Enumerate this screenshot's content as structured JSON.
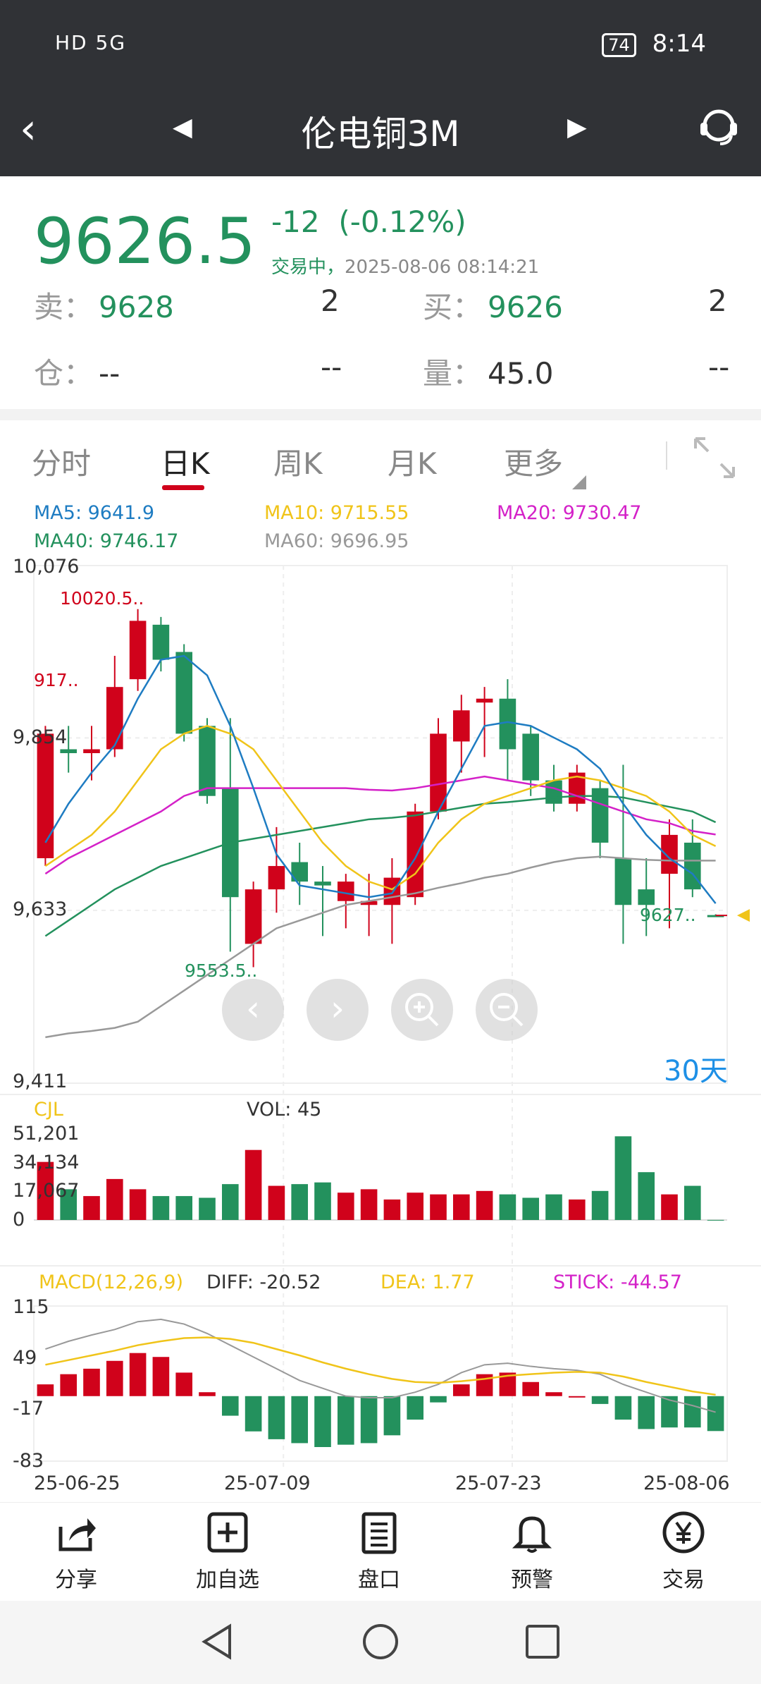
{
  "status_bar": {
    "left": "HD 5G",
    "battery": "74",
    "time": "8:14"
  },
  "nav": {
    "title": "伦电铜3M"
  },
  "quote": {
    "price": "9626.5",
    "change": "-12",
    "change_pct": "(-0.12%)",
    "status": "交易中，",
    "timestamp": "2025-08-06 08:14:21",
    "sell_label": "卖：",
    "sell_price": "9628",
    "sell_qty": "2",
    "buy_label": "买：",
    "buy_price": "9626",
    "buy_qty": "2",
    "position_label": "仓：",
    "position_value": "--",
    "position_change": "--",
    "volume_label": "量：",
    "volume_value": "45.0",
    "volume_change": "--"
  },
  "tabs": [
    "分时",
    "日K",
    "周K",
    "月K",
    "更多"
  ],
  "ma": {
    "ma5": "MA5: 9641.9",
    "ma10": "MA10: 9715.55",
    "ma20": "MA20: 9730.47",
    "ma40": "MA40: 9746.17",
    "ma60": "MA60: 9696.95"
  },
  "colors": {
    "up": "#d0021b",
    "down": "#23915d",
    "ma5": "#1e7cc2",
    "ma10": "#f0c419",
    "ma20": "#d421c8",
    "ma40": "#23915d",
    "ma60": "#999999"
  },
  "chart_data": {
    "type": "candlestick",
    "y_axis": [
      "10,076",
      "9,854",
      "9,633",
      "9,411"
    ],
    "ylim": [
      9411,
      10076
    ],
    "annotations": {
      "high": "10020.5..",
      "low": "9553.5..",
      "left": "917..",
      "last": "9627.."
    },
    "period_label": "30天",
    "candles": [
      {
        "o": 9700,
        "c": 9860,
        "h": 9870,
        "l": 9690
      },
      {
        "o": 9840,
        "c": 9835,
        "h": 9870,
        "l": 9810
      },
      {
        "o": 9835,
        "c": 9840,
        "h": 9870,
        "l": 9800
      },
      {
        "o": 9840,
        "c": 9920,
        "h": 9960,
        "l": 9830
      },
      {
        "o": 9930,
        "c": 10005,
        "h": 10020,
        "l": 9915
      },
      {
        "o": 10000,
        "c": 9955,
        "h": 10010,
        "l": 9940
      },
      {
        "o": 9965,
        "c": 9860,
        "h": 9975,
        "l": 9850
      },
      {
        "o": 9870,
        "c": 9780,
        "h": 9880,
        "l": 9770
      },
      {
        "o": 9790,
        "c": 9650,
        "h": 9880,
        "l": 9580
      },
      {
        "o": 9590,
        "c": 9660,
        "h": 9670,
        "l": 9560
      },
      {
        "o": 9660,
        "c": 9690,
        "h": 9740,
        "l": 9630
      },
      {
        "o": 9695,
        "c": 9670,
        "h": 9720,
        "l": 9640
      },
      {
        "o": 9670,
        "c": 9665,
        "h": 9690,
        "l": 9600
      },
      {
        "o": 9645,
        "c": 9670,
        "h": 9680,
        "l": 9610
      },
      {
        "o": 9640,
        "c": 9645,
        "h": 9680,
        "l": 9600
      },
      {
        "o": 9640,
        "c": 9675,
        "h": 9700,
        "l": 9590
      },
      {
        "o": 9650,
        "c": 9760,
        "h": 9770,
        "l": 9640
      },
      {
        "o": 9760,
        "c": 9860,
        "h": 9880,
        "l": 9750
      },
      {
        "o": 9850,
        "c": 9890,
        "h": 9910,
        "l": 9810
      },
      {
        "o": 9900,
        "c": 9905,
        "h": 9920,
        "l": 9830
      },
      {
        "o": 9905,
        "c": 9840,
        "h": 9930,
        "l": 9800
      },
      {
        "o": 9860,
        "c": 9800,
        "h": 9870,
        "l": 9780
      },
      {
        "o": 9800,
        "c": 9770,
        "h": 9820,
        "l": 9760
      },
      {
        "o": 9770,
        "c": 9810,
        "h": 9820,
        "l": 9760
      },
      {
        "o": 9790,
        "c": 9720,
        "h": 9800,
        "l": 9700
      },
      {
        "o": 9700,
        "c": 9640,
        "h": 9820,
        "l": 9590
      },
      {
        "o": 9660,
        "c": 9640,
        "h": 9700,
        "l": 9600
      },
      {
        "o": 9680,
        "c": 9730,
        "h": 9750,
        "l": 9610
      },
      {
        "o": 9720,
        "c": 9660,
        "h": 9750,
        "l": 9650
      },
      {
        "o": 9627,
        "c": 9626.5,
        "h": 9628,
        "l": 9626
      }
    ],
    "ma5": [
      9720,
      9770,
      9810,
      9845,
      9905,
      9955,
      9960,
      9935,
      9870,
      9790,
      9705,
      9665,
      9660,
      9655,
      9650,
      9655,
      9700,
      9760,
      9815,
      9870,
      9875,
      9870,
      9855,
      9840,
      9815,
      9770,
      9730,
      9700,
      9680,
      9641.9
    ],
    "ma10": [
      9690,
      9710,
      9730,
      9760,
      9800,
      9840,
      9860,
      9870,
      9860,
      9840,
      9800,
      9760,
      9720,
      9690,
      9670,
      9660,
      9680,
      9720,
      9750,
      9770,
      9780,
      9790,
      9800,
      9805,
      9800,
      9790,
      9780,
      9760,
      9730,
      9715.55
    ],
    "ma20": [
      9680,
      9700,
      9715,
      9730,
      9745,
      9760,
      9780,
      9790,
      9790,
      9790,
      9790,
      9790,
      9790,
      9790,
      9788,
      9787,
      9790,
      9795,
      9800,
      9805,
      9800,
      9795,
      9790,
      9780,
      9770,
      9760,
      9750,
      9745,
      9735,
      9730.47
    ],
    "ma40": [
      9600,
      9620,
      9640,
      9660,
      9675,
      9690,
      9700,
      9710,
      9720,
      9725,
      9730,
      9735,
      9740,
      9745,
      9750,
      9752,
      9755,
      9760,
      9765,
      9770,
      9772,
      9775,
      9778,
      9780,
      9780,
      9778,
      9772,
      9766,
      9760,
      9746.17
    ],
    "ma60": [
      9470,
      9475,
      9478,
      9482,
      9490,
      9510,
      9530,
      9550,
      9570,
      9590,
      9610,
      9620,
      9630,
      9640,
      9645,
      9650,
      9655,
      9662,
      9668,
      9675,
      9680,
      9688,
      9695,
      9700,
      9702,
      9700,
      9698,
      9697,
      9697,
      9696.95
    ],
    "volume": {
      "label": "CJL",
      "vol_label": "VOL: 45",
      "y_axis": [
        "51,201",
        "34,134",
        "17,067",
        "0"
      ],
      "ylim": [
        0,
        51201
      ],
      "values": [
        34000,
        18000,
        14000,
        24000,
        18000,
        14000,
        14000,
        13000,
        21000,
        41000,
        20000,
        21000,
        22000,
        16000,
        18000,
        12000,
        16000,
        15000,
        15000,
        17000,
        15000,
        13000,
        15000,
        12000,
        17000,
        49000,
        28000,
        15000,
        20000,
        45
      ]
    },
    "macd": {
      "label": "MACD(12,26,9)",
      "diff_label": "DIFF: -20.52",
      "dea_label": "DEA: 1.77",
      "stick_label": "STICK: -44.57",
      "y_axis": [
        "115",
        "49",
        "-17",
        "-83"
      ],
      "ylim": [
        -83,
        115
      ],
      "stick": [
        15,
        28,
        35,
        45,
        55,
        50,
        30,
        5,
        -25,
        -45,
        -55,
        -60,
        -65,
        -62,
        -60,
        -50,
        -30,
        -8,
        15,
        28,
        30,
        18,
        5,
        0,
        -10,
        -30,
        -42,
        -40,
        -40,
        -44.57
      ],
      "diff": [
        60,
        70,
        78,
        85,
        95,
        98,
        92,
        80,
        65,
        50,
        35,
        20,
        10,
        0,
        -2,
        -2,
        5,
        15,
        30,
        40,
        42,
        38,
        35,
        33,
        28,
        15,
        5,
        -5,
        -12,
        -20.52
      ],
      "dea": [
        40,
        46,
        52,
        58,
        65,
        70,
        74,
        75,
        73,
        68,
        60,
        52,
        43,
        35,
        28,
        22,
        18,
        17,
        19,
        22,
        26,
        28,
        30,
        31,
        30,
        25,
        18,
        12,
        6,
        1.77
      ]
    },
    "x_axis": [
      "25-06-25",
      "25-07-09",
      "25-07-23",
      "25-08-06"
    ]
  },
  "bottom_bar": [
    "分享",
    "加自选",
    "盘口",
    "预警",
    "交易"
  ]
}
